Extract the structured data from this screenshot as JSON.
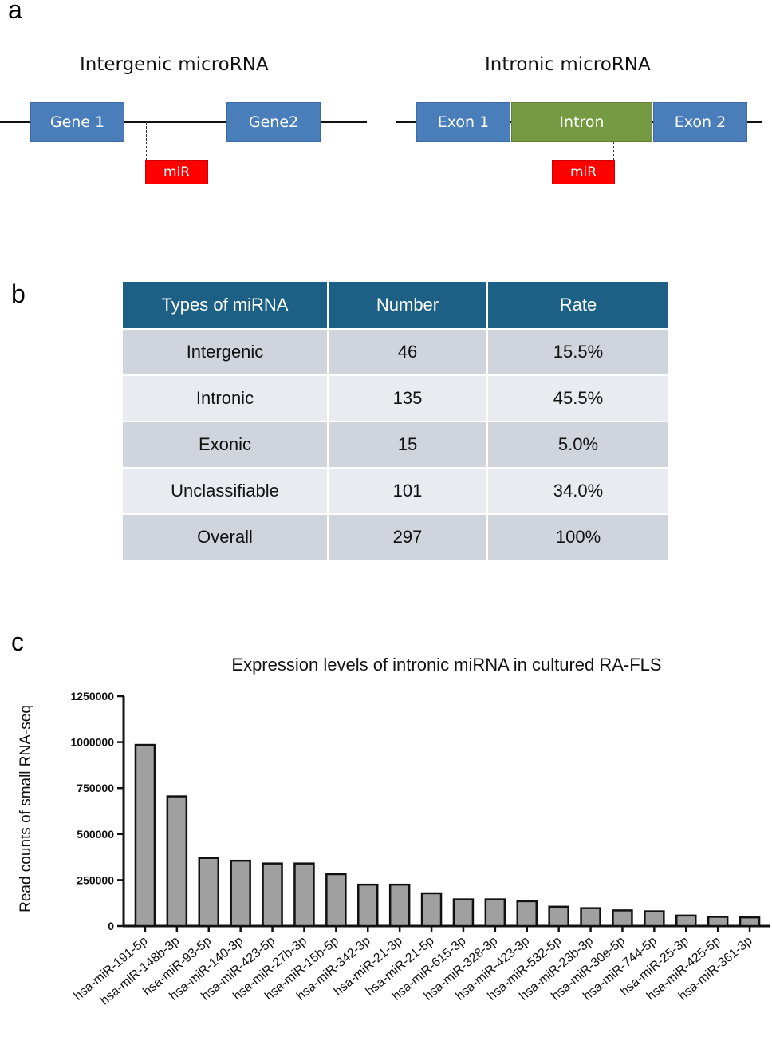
{
  "panels": {
    "a": "a",
    "b": "b",
    "c": "c"
  },
  "diagram": {
    "intergenic": {
      "title": "Intergenic microRNA",
      "gene1": "Gene 1",
      "gene2": "Gene2",
      "mir": "miR"
    },
    "intronic": {
      "title": "Intronic microRNA",
      "exon1": "Exon 1",
      "intron": "Intron",
      "exon2": "Exon 2",
      "mir": "miR"
    },
    "colors": {
      "gene": "#4a7ebb",
      "intron": "#759a41",
      "mir": "#ff0000"
    }
  },
  "table": {
    "headers": [
      "Types of miRNA",
      "Number",
      "Rate"
    ],
    "rows": [
      {
        "type": "Intergenic",
        "number": "46",
        "rate": "15.5%"
      },
      {
        "type": "Intronic",
        "number": "135",
        "rate": "45.5%"
      },
      {
        "type": "Exonic",
        "number": "15",
        "rate": "5.0%"
      },
      {
        "type": "Unclassifiable",
        "number": "101",
        "rate": "34.0%"
      },
      {
        "type": "Overall",
        "number": "297",
        "rate": "100%"
      }
    ],
    "header_color": "#1c6185"
  },
  "chart_data": {
    "type": "bar",
    "title": "Expression levels of intronic miRNA in cultured RA-FLS",
    "xlabel": "",
    "ylabel": "Read counts of small RNA-seq",
    "ylim": [
      0,
      1250000
    ],
    "yticks": [
      "0",
      "250000",
      "500000",
      "750000",
      "1000000",
      "1250000"
    ],
    "categories": [
      "hsa-miR-191-5p",
      "hsa-miR-148b-3p",
      "hsa-miR-93-5p",
      "hsa-miR-140-3p",
      "hsa-miR-423-5p",
      "hsa-miR-27b-3p",
      "hsa-miR-15b-5p",
      "hsa-miR-342-3p",
      "hsa-miR-21-3p",
      "hsa-miR-21-5p",
      "hsa-miR-615-3p",
      "hsa-miR-328-3p",
      "hsa-miR-423-3p",
      "hsa-miR-532-5p",
      "hsa-miR-23b-3p",
      "hsa-miR-30e-5p",
      "hsa-miR-744-5p",
      "hsa-miR-25-3p",
      "hsa-miR-425-5p",
      "hsa-miR-361-3p"
    ],
    "values": [
      985000,
      705000,
      370000,
      355000,
      340000,
      340000,
      282000,
      225000,
      225000,
      178000,
      145000,
      145000,
      135000,
      105000,
      97000,
      85000,
      80000,
      57000,
      50000,
      47000
    ],
    "bar_color": "#a0a0a0",
    "grid": false
  }
}
